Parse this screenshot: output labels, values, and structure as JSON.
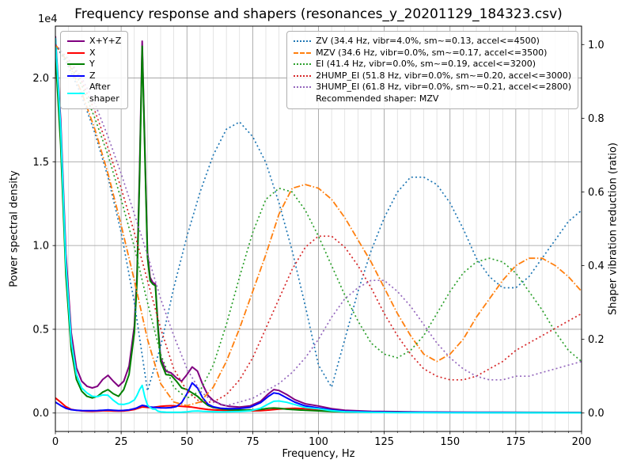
{
  "title": "Frequency response and shapers (resonances_y_20201129_184323.csv)",
  "offset_text": "1e4",
  "legend_psd": [
    {
      "label": "X+Y+Z",
      "color": "#800080",
      "line": "solid"
    },
    {
      "label": "X",
      "color": "#ff0000",
      "line": "solid"
    },
    {
      "label": "Y",
      "color": "#008000",
      "line": "solid"
    },
    {
      "label": "Z",
      "color": "#0000ff",
      "line": "solid"
    },
    {
      "label": "After\nshaper",
      "color": "#00ffff",
      "line": "solid"
    }
  ],
  "legend_shapers": {
    "entries": [
      {
        "label": "ZV (34.4 Hz, vibr=4.0%, sm~=0.13, accel<=4500)",
        "color": "#1f77b4",
        "line": "dotted"
      },
      {
        "label": "MZV (34.6 Hz, vibr=0.0%, sm~=0.17, accel<=3500)",
        "color": "#ff7f0e",
        "line": "dashdot"
      },
      {
        "label": "EI (41.4 Hz, vibr=0.0%, sm~=0.19, accel<=3200)",
        "color": "#2ca02c",
        "line": "dotted"
      },
      {
        "label": "2HUMP_EI (51.8 Hz, vibr=0.0%, sm~=0.20, accel<=3000)",
        "color": "#d62728",
        "line": "dotted"
      },
      {
        "label": "3HUMP_EI (61.8 Hz, vibr=0.0%, sm~=0.21, accel<=2800)",
        "color": "#9467bd",
        "line": "dotted"
      }
    ],
    "footer": "Recommended shaper: MZV"
  },
  "chart_data": {
    "type": "line",
    "title": "Frequency response and shapers (resonances_y_20201129_184323.csv)",
    "xlabel": "Frequency, Hz",
    "ylabel_left": "Power spectral density",
    "ylabel_right": "Shaper vibration reduction (ratio)",
    "xlim": [
      0,
      200
    ],
    "ylim_left": [
      -1100,
      23100
    ],
    "ylim_right": [
      -0.05,
      1.05
    ],
    "x_minor_step": 5,
    "grid": {
      "major_color": "#9a9a9a",
      "minor_color": "#d9d9d9"
    },
    "xticks": {
      "values": [
        0,
        25,
        50,
        75,
        100,
        125,
        150,
        175,
        200
      ],
      "labels": [
        "0",
        "25",
        "50",
        "75",
        "100",
        "125",
        "150",
        "175",
        "200"
      ]
    },
    "yticks_left": {
      "values": [
        0,
        5000,
        10000,
        15000,
        20000
      ],
      "labels": [
        "0.0",
        "0.5",
        "1.0",
        "1.5",
        "2.0"
      ]
    },
    "yticks_right": {
      "values": [
        0.0,
        0.2,
        0.4,
        0.6,
        0.8,
        1.0
      ],
      "labels": [
        "0.0",
        "0.2",
        "0.4",
        "0.6",
        "0.8",
        "1.0"
      ]
    },
    "psd_x": [
      0,
      2,
      4,
      6,
      8,
      10,
      12,
      14,
      16,
      18,
      20,
      22,
      24,
      26,
      28,
      30,
      31,
      32,
      33,
      34,
      35,
      36,
      37,
      38,
      39,
      40,
      42,
      44,
      46,
      48,
      50,
      52,
      54,
      56,
      58,
      60,
      63,
      66,
      70,
      74,
      78,
      81,
      83,
      85,
      88,
      91,
      95,
      100,
      105,
      110,
      120,
      130,
      140,
      150,
      160,
      170,
      180,
      190,
      200
    ],
    "shaper_x": [
      0,
      5,
      10,
      15,
      20,
      25,
      30,
      35,
      40,
      45,
      50,
      55,
      60,
      65,
      70,
      75,
      80,
      85,
      90,
      95,
      100,
      105,
      110,
      115,
      120,
      125,
      130,
      135,
      140,
      145,
      150,
      155,
      160,
      165,
      170,
      175,
      180,
      185,
      190,
      195,
      200
    ],
    "series": [
      {
        "name": "X+Y+Z",
        "axis": "left",
        "x_ref": "psd_x",
        "color": "#800080",
        "style": "solid",
        "width": 2,
        "y": [
          22500,
          17500,
          9500,
          4800,
          2700,
          1900,
          1600,
          1500,
          1600,
          2000,
          2250,
          1900,
          1600,
          1900,
          2800,
          5200,
          8200,
          14500,
          22200,
          15800,
          9600,
          8100,
          7800,
          7700,
          5200,
          3300,
          2500,
          2400,
          2100,
          1900,
          2300,
          2750,
          2500,
          1700,
          1050,
          750,
          500,
          400,
          350,
          420,
          700,
          1150,
          1400,
          1350,
          1100,
          800,
          550,
          420,
          260,
          160,
          100,
          80,
          60,
          55,
          50,
          45,
          40,
          35,
          30
        ]
      },
      {
        "name": "X",
        "axis": "left",
        "x_ref": "psd_x",
        "color": "#ff0000",
        "style": "solid",
        "width": 2,
        "y": [
          900,
          650,
          380,
          220,
          160,
          130,
          110,
          105,
          115,
          135,
          145,
          125,
          115,
          125,
          155,
          210,
          260,
          310,
          360,
          355,
          335,
          330,
          340,
          360,
          380,
          400,
          420,
          435,
          420,
          400,
          380,
          350,
          300,
          250,
          210,
          185,
          160,
          145,
          135,
          130,
          145,
          175,
          205,
          235,
          265,
          280,
          255,
          205,
          130,
          85,
          55,
          42,
          35,
          32,
          28,
          26,
          24,
          22,
          20
        ]
      },
      {
        "name": "Y",
        "axis": "left",
        "x_ref": "psd_x",
        "color": "#008000",
        "style": "solid",
        "width": 2,
        "y": [
          21500,
          16000,
          8200,
          3800,
          2000,
          1300,
          1000,
          900,
          1000,
          1250,
          1400,
          1150,
          1000,
          1400,
          2300,
          4800,
          7800,
          14000,
          21900,
          15400,
          9300,
          7900,
          7700,
          7600,
          5000,
          3100,
          2300,
          2250,
          1900,
          1500,
          1400,
          1200,
          1000,
          700,
          450,
          330,
          250,
          200,
          180,
          180,
          220,
          280,
          300,
          280,
          230,
          200,
          160,
          130,
          90,
          70,
          55,
          45,
          40,
          35,
          32,
          30,
          28,
          25,
          22
        ]
      },
      {
        "name": "Z",
        "axis": "left",
        "x_ref": "psd_x",
        "color": "#0000ff",
        "style": "solid",
        "width": 2,
        "y": [
          650,
          450,
          280,
          200,
          165,
          150,
          140,
          138,
          148,
          168,
          185,
          165,
          148,
          158,
          190,
          260,
          310,
          390,
          460,
          430,
          390,
          360,
          345,
          335,
          325,
          315,
          305,
          325,
          390,
          620,
          1150,
          1800,
          1500,
          900,
          520,
          370,
          280,
          260,
          270,
          340,
          620,
          1000,
          1200,
          1150,
          900,
          650,
          420,
          310,
          185,
          105,
          62,
          50,
          42,
          36,
          32,
          28,
          26,
          23,
          20
        ]
      },
      {
        "name": "After shaper",
        "axis": "left",
        "x_ref": "psd_x",
        "color": "#00ffff",
        "style": "solid",
        "width": 2,
        "y": [
          22400,
          17000,
          8900,
          4300,
          2300,
          1500,
          1200,
          1000,
          980,
          1080,
          1060,
          760,
          530,
          510,
          590,
          780,
          1050,
          1400,
          1650,
          950,
          480,
          330,
          240,
          230,
          110,
          70,
          55,
          50,
          48,
          55,
          70,
          110,
          125,
          100,
          85,
          75,
          72,
          75,
          90,
          130,
          290,
          540,
          700,
          720,
          640,
          500,
          330,
          250,
          145,
          75,
          40,
          25,
          18,
          15,
          14,
          14,
          14,
          13,
          11
        ]
      },
      {
        "name": "ZV",
        "axis": "right",
        "x_ref": "shaper_x",
        "color": "#1f77b4",
        "style": "dotted",
        "width": 1.7,
        "y": [
          1.0,
          0.94,
          0.86,
          0.76,
          0.64,
          0.49,
          0.3,
          0.06,
          0.18,
          0.34,
          0.48,
          0.6,
          0.7,
          0.77,
          0.79,
          0.75,
          0.68,
          0.57,
          0.44,
          0.29,
          0.13,
          0.07,
          0.2,
          0.33,
          0.44,
          0.53,
          0.6,
          0.64,
          0.64,
          0.62,
          0.57,
          0.5,
          0.42,
          0.37,
          0.34,
          0.34,
          0.37,
          0.42,
          0.47,
          0.52,
          0.55
        ]
      },
      {
        "name": "MZV",
        "axis": "right",
        "x_ref": "shaper_x",
        "color": "#ff7f0e",
        "style": "dashdot",
        "width": 1.8,
        "y": [
          1.0,
          0.95,
          0.87,
          0.77,
          0.65,
          0.51,
          0.36,
          0.2,
          0.08,
          0.03,
          0.02,
          0.03,
          0.07,
          0.14,
          0.23,
          0.33,
          0.43,
          0.54,
          0.61,
          0.62,
          0.61,
          0.58,
          0.53,
          0.47,
          0.41,
          0.34,
          0.27,
          0.21,
          0.16,
          0.14,
          0.16,
          0.2,
          0.26,
          0.31,
          0.36,
          0.4,
          0.42,
          0.42,
          0.4,
          0.37,
          0.33
        ]
      },
      {
        "name": "EI",
        "axis": "right",
        "x_ref": "shaper_x",
        "color": "#2ca02c",
        "style": "dotted",
        "width": 1.7,
        "y": [
          1.0,
          0.95,
          0.89,
          0.8,
          0.7,
          0.58,
          0.45,
          0.3,
          0.16,
          0.07,
          0.04,
          0.06,
          0.13,
          0.24,
          0.37,
          0.49,
          0.58,
          0.61,
          0.6,
          0.55,
          0.48,
          0.4,
          0.32,
          0.25,
          0.19,
          0.16,
          0.15,
          0.17,
          0.21,
          0.27,
          0.33,
          0.38,
          0.41,
          0.42,
          0.41,
          0.38,
          0.33,
          0.28,
          0.22,
          0.17,
          0.14
        ]
      },
      {
        "name": "2HUMP_EI",
        "axis": "right",
        "x_ref": "shaper_x",
        "color": "#d62728",
        "style": "dotted",
        "width": 1.7,
        "y": [
          1.0,
          0.96,
          0.9,
          0.82,
          0.72,
          0.61,
          0.49,
          0.36,
          0.23,
          0.12,
          0.06,
          0.03,
          0.03,
          0.05,
          0.09,
          0.15,
          0.23,
          0.31,
          0.39,
          0.45,
          0.48,
          0.48,
          0.45,
          0.4,
          0.34,
          0.27,
          0.21,
          0.16,
          0.12,
          0.1,
          0.09,
          0.09,
          0.1,
          0.12,
          0.14,
          0.17,
          0.19,
          0.21,
          0.23,
          0.25,
          0.27
        ]
      },
      {
        "name": "3HUMP_EI",
        "axis": "right",
        "x_ref": "shaper_x",
        "color": "#9467bd",
        "style": "dotted",
        "width": 1.7,
        "y": [
          1.0,
          0.96,
          0.91,
          0.84,
          0.75,
          0.65,
          0.54,
          0.43,
          0.31,
          0.21,
          0.12,
          0.06,
          0.03,
          0.02,
          0.03,
          0.04,
          0.06,
          0.08,
          0.11,
          0.15,
          0.2,
          0.26,
          0.31,
          0.34,
          0.36,
          0.36,
          0.33,
          0.29,
          0.24,
          0.19,
          0.15,
          0.12,
          0.1,
          0.09,
          0.09,
          0.1,
          0.1,
          0.11,
          0.12,
          0.13,
          0.14
        ]
      }
    ]
  }
}
